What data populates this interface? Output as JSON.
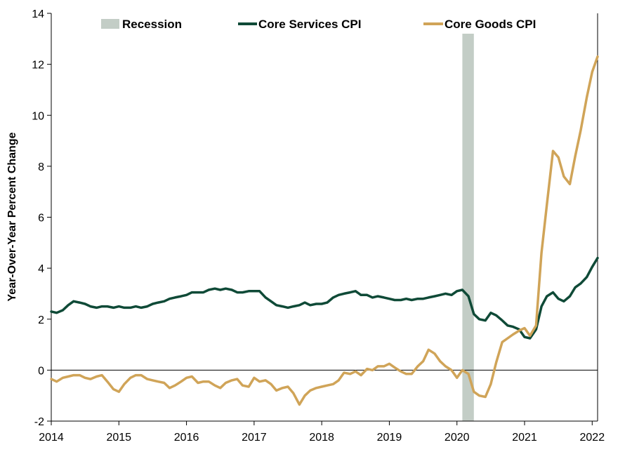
{
  "chart_data": {
    "type": "line",
    "title": "",
    "xlabel": "",
    "ylabel": "Year-Over-Year Percent Change",
    "xlim": [
      2014.0,
      2022.08
    ],
    "ylim": [
      -2,
      14
    ],
    "y_ticks": [
      -2,
      0,
      2,
      4,
      6,
      8,
      10,
      12,
      14
    ],
    "x_ticks": [
      2014,
      2015,
      2016,
      2017,
      2018,
      2019,
      2020,
      2021,
      2022
    ],
    "x_tick_labels": [
      "2014",
      "2015",
      "2016",
      "2017",
      "2018",
      "2019",
      "2020",
      "2021",
      "2022"
    ],
    "grid": false,
    "legend_position": "top",
    "recession": {
      "name": "Recession",
      "x_start": 2020.08,
      "x_end": 2020.25,
      "color": "#c3cdc6"
    },
    "series": [
      {
        "name": "Core Services CPI",
        "color": "#0f4a37",
        "points": [
          [
            2014.0,
            2.3
          ],
          [
            2014.08,
            2.25
          ],
          [
            2014.17,
            2.35
          ],
          [
            2014.25,
            2.55
          ],
          [
            2014.33,
            2.7
          ],
          [
            2014.42,
            2.65
          ],
          [
            2014.5,
            2.6
          ],
          [
            2014.58,
            2.5
          ],
          [
            2014.67,
            2.45
          ],
          [
            2014.75,
            2.5
          ],
          [
            2014.83,
            2.5
          ],
          [
            2014.92,
            2.45
          ],
          [
            2015.0,
            2.5
          ],
          [
            2015.08,
            2.45
          ],
          [
            2015.17,
            2.45
          ],
          [
            2015.25,
            2.5
          ],
          [
            2015.33,
            2.45
          ],
          [
            2015.42,
            2.5
          ],
          [
            2015.5,
            2.6
          ],
          [
            2015.58,
            2.65
          ],
          [
            2015.67,
            2.7
          ],
          [
            2015.75,
            2.8
          ],
          [
            2015.83,
            2.85
          ],
          [
            2015.92,
            2.9
          ],
          [
            2016.0,
            2.95
          ],
          [
            2016.08,
            3.05
          ],
          [
            2016.17,
            3.05
          ],
          [
            2016.25,
            3.05
          ],
          [
            2016.33,
            3.15
          ],
          [
            2016.42,
            3.2
          ],
          [
            2016.5,
            3.15
          ],
          [
            2016.58,
            3.2
          ],
          [
            2016.67,
            3.15
          ],
          [
            2016.75,
            3.05
          ],
          [
            2016.83,
            3.05
          ],
          [
            2016.92,
            3.1
          ],
          [
            2017.0,
            3.1
          ],
          [
            2017.08,
            3.1
          ],
          [
            2017.17,
            2.85
          ],
          [
            2017.25,
            2.7
          ],
          [
            2017.33,
            2.55
          ],
          [
            2017.42,
            2.5
          ],
          [
            2017.5,
            2.45
          ],
          [
            2017.58,
            2.5
          ],
          [
            2017.67,
            2.55
          ],
          [
            2017.75,
            2.65
          ],
          [
            2017.83,
            2.55
          ],
          [
            2017.92,
            2.6
          ],
          [
            2018.0,
            2.6
          ],
          [
            2018.08,
            2.65
          ],
          [
            2018.17,
            2.85
          ],
          [
            2018.25,
            2.95
          ],
          [
            2018.33,
            3.0
          ],
          [
            2018.42,
            3.05
          ],
          [
            2018.5,
            3.1
          ],
          [
            2018.58,
            2.95
          ],
          [
            2018.67,
            2.95
          ],
          [
            2018.75,
            2.85
          ],
          [
            2018.83,
            2.9
          ],
          [
            2018.92,
            2.85
          ],
          [
            2019.0,
            2.8
          ],
          [
            2019.08,
            2.75
          ],
          [
            2019.17,
            2.75
          ],
          [
            2019.25,
            2.8
          ],
          [
            2019.33,
            2.75
          ],
          [
            2019.42,
            2.8
          ],
          [
            2019.5,
            2.8
          ],
          [
            2019.58,
            2.85
          ],
          [
            2019.67,
            2.9
          ],
          [
            2019.75,
            2.95
          ],
          [
            2019.83,
            3.0
          ],
          [
            2019.92,
            2.95
          ],
          [
            2020.0,
            3.1
          ],
          [
            2020.08,
            3.15
          ],
          [
            2020.17,
            2.9
          ],
          [
            2020.25,
            2.2
          ],
          [
            2020.33,
            2.0
          ],
          [
            2020.42,
            1.95
          ],
          [
            2020.5,
            2.25
          ],
          [
            2020.58,
            2.15
          ],
          [
            2020.67,
            1.95
          ],
          [
            2020.75,
            1.75
          ],
          [
            2020.83,
            1.7
          ],
          [
            2020.92,
            1.6
          ],
          [
            2021.0,
            1.3
          ],
          [
            2021.08,
            1.25
          ],
          [
            2021.17,
            1.6
          ],
          [
            2021.25,
            2.5
          ],
          [
            2021.33,
            2.9
          ],
          [
            2021.42,
            3.05
          ],
          [
            2021.5,
            2.8
          ],
          [
            2021.58,
            2.7
          ],
          [
            2021.67,
            2.9
          ],
          [
            2021.75,
            3.25
          ],
          [
            2021.83,
            3.4
          ],
          [
            2021.92,
            3.65
          ],
          [
            2022.0,
            4.05
          ],
          [
            2022.08,
            4.4
          ]
        ]
      },
      {
        "name": "Core Goods CPI",
        "color": "#d0a458",
        "points": [
          [
            2014.0,
            -0.35
          ],
          [
            2014.08,
            -0.45
          ],
          [
            2014.17,
            -0.3
          ],
          [
            2014.25,
            -0.25
          ],
          [
            2014.33,
            -0.2
          ],
          [
            2014.42,
            -0.2
          ],
          [
            2014.5,
            -0.3
          ],
          [
            2014.58,
            -0.35
          ],
          [
            2014.67,
            -0.25
          ],
          [
            2014.75,
            -0.2
          ],
          [
            2014.83,
            -0.45
          ],
          [
            2014.92,
            -0.75
          ],
          [
            2015.0,
            -0.85
          ],
          [
            2015.08,
            -0.55
          ],
          [
            2015.17,
            -0.3
          ],
          [
            2015.25,
            -0.2
          ],
          [
            2015.33,
            -0.2
          ],
          [
            2015.42,
            -0.35
          ],
          [
            2015.5,
            -0.4
          ],
          [
            2015.58,
            -0.45
          ],
          [
            2015.67,
            -0.5
          ],
          [
            2015.75,
            -0.7
          ],
          [
            2015.83,
            -0.6
          ],
          [
            2015.92,
            -0.45
          ],
          [
            2016.0,
            -0.3
          ],
          [
            2016.08,
            -0.25
          ],
          [
            2016.17,
            -0.5
          ],
          [
            2016.25,
            -0.45
          ],
          [
            2016.33,
            -0.45
          ],
          [
            2016.42,
            -0.6
          ],
          [
            2016.5,
            -0.7
          ],
          [
            2016.58,
            -0.5
          ],
          [
            2016.67,
            -0.4
          ],
          [
            2016.75,
            -0.35
          ],
          [
            2016.83,
            -0.6
          ],
          [
            2016.92,
            -0.65
          ],
          [
            2017.0,
            -0.3
          ],
          [
            2017.08,
            -0.45
          ],
          [
            2017.17,
            -0.4
          ],
          [
            2017.25,
            -0.55
          ],
          [
            2017.33,
            -0.8
          ],
          [
            2017.42,
            -0.7
          ],
          [
            2017.5,
            -0.65
          ],
          [
            2017.58,
            -0.9
          ],
          [
            2017.67,
            -1.35
          ],
          [
            2017.75,
            -1.0
          ],
          [
            2017.83,
            -0.8
          ],
          [
            2017.92,
            -0.7
          ],
          [
            2018.0,
            -0.65
          ],
          [
            2018.08,
            -0.6
          ],
          [
            2018.17,
            -0.55
          ],
          [
            2018.25,
            -0.4
          ],
          [
            2018.33,
            -0.1
          ],
          [
            2018.42,
            -0.15
          ],
          [
            2018.5,
            -0.05
          ],
          [
            2018.58,
            -0.2
          ],
          [
            2018.67,
            0.05
          ],
          [
            2018.75,
            0.0
          ],
          [
            2018.83,
            0.15
          ],
          [
            2018.92,
            0.15
          ],
          [
            2019.0,
            0.25
          ],
          [
            2019.08,
            0.1
          ],
          [
            2019.17,
            -0.05
          ],
          [
            2019.25,
            -0.15
          ],
          [
            2019.33,
            -0.15
          ],
          [
            2019.42,
            0.15
          ],
          [
            2019.5,
            0.35
          ],
          [
            2019.58,
            0.8
          ],
          [
            2019.67,
            0.65
          ],
          [
            2019.75,
            0.35
          ],
          [
            2019.83,
            0.15
          ],
          [
            2019.92,
            0.0
          ],
          [
            2020.0,
            -0.3
          ],
          [
            2020.08,
            0.0
          ],
          [
            2020.17,
            -0.15
          ],
          [
            2020.25,
            -0.85
          ],
          [
            2020.33,
            -1.0
          ],
          [
            2020.42,
            -1.05
          ],
          [
            2020.5,
            -0.55
          ],
          [
            2020.58,
            0.3
          ],
          [
            2020.67,
            1.1
          ],
          [
            2020.75,
            1.25
          ],
          [
            2020.83,
            1.4
          ],
          [
            2020.92,
            1.55
          ],
          [
            2021.0,
            1.65
          ],
          [
            2021.08,
            1.35
          ],
          [
            2021.17,
            1.75
          ],
          [
            2021.25,
            4.6
          ],
          [
            2021.33,
            6.5
          ],
          [
            2021.42,
            8.6
          ],
          [
            2021.5,
            8.35
          ],
          [
            2021.58,
            7.6
          ],
          [
            2021.67,
            7.3
          ],
          [
            2021.75,
            8.4
          ],
          [
            2021.83,
            9.4
          ],
          [
            2021.92,
            10.7
          ],
          [
            2022.0,
            11.7
          ],
          [
            2022.08,
            12.3
          ]
        ]
      }
    ]
  }
}
